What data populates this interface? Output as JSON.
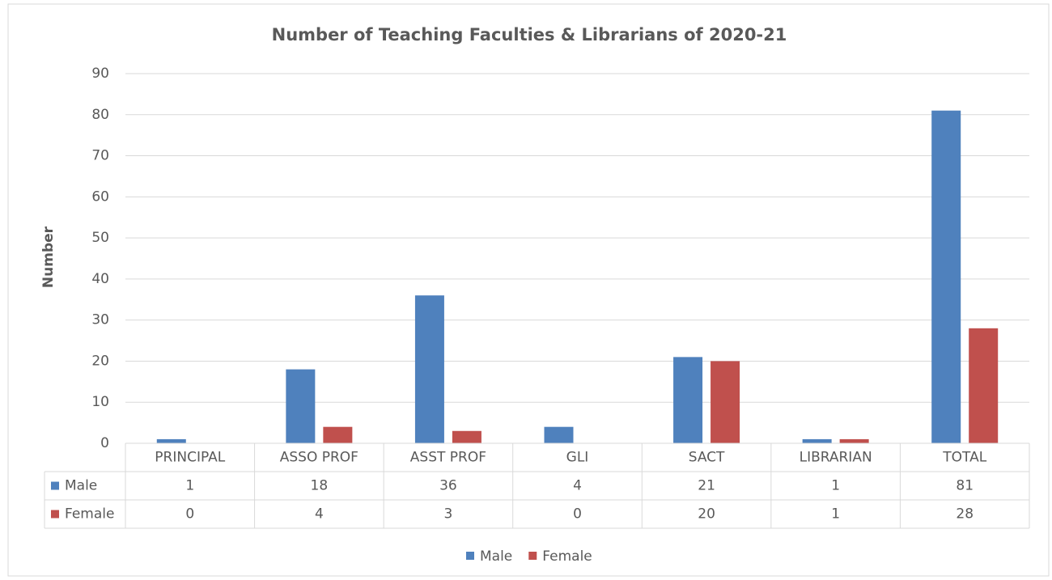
{
  "chart_data": {
    "type": "bar",
    "title": "Number of Teaching Faculties & Librarians of 2020-21",
    "y_label": "Number",
    "categories": [
      "PRINCIPAL",
      "ASSO PROF",
      "ASST PROF",
      "GLI",
      "SACT",
      "LIBRARIAN",
      "TOTAL"
    ],
    "series": [
      {
        "name": "Male",
        "color": "#4f81bd",
        "values": [
          1,
          18,
          36,
          4,
          21,
          1,
          81
        ]
      },
      {
        "name": "Female",
        "color": "#c0504d",
        "values": [
          0,
          4,
          3,
          0,
          20,
          1,
          28
        ]
      }
    ],
    "ylim": [
      0,
      90
    ],
    "yticks": [
      0,
      10,
      20,
      30,
      40,
      50,
      60,
      70,
      80,
      90
    ],
    "grid": true,
    "legend": "bottom"
  }
}
